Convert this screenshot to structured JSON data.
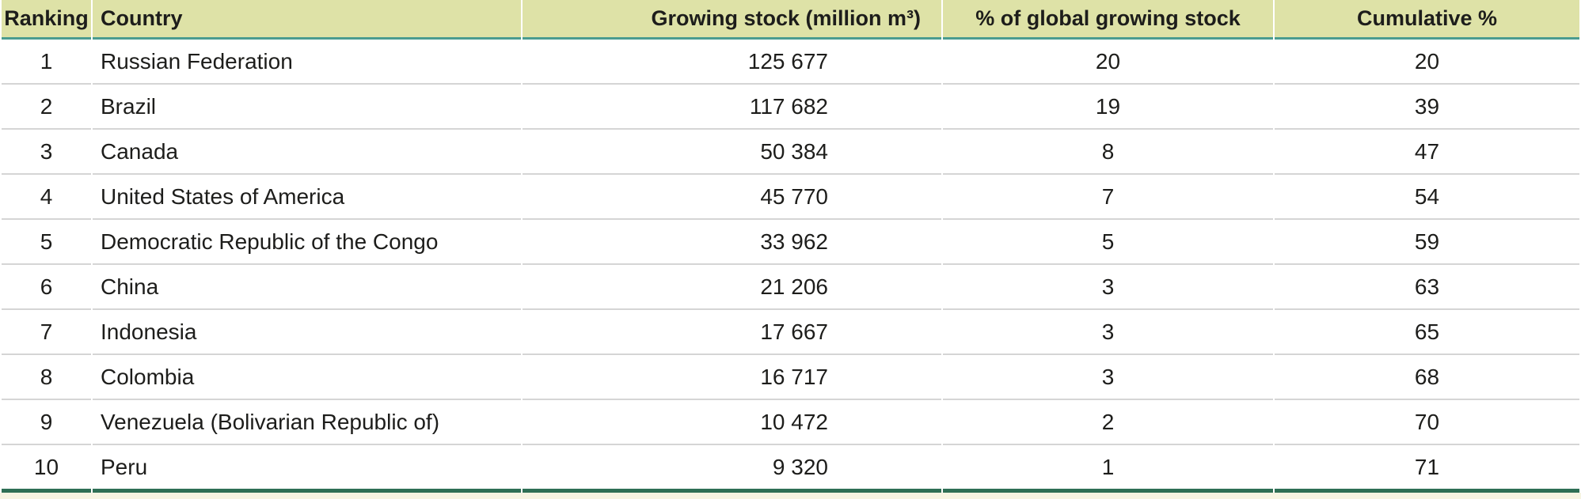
{
  "chart_data": {
    "type": "table",
    "columns": [
      "Ranking",
      "Country",
      "Growing stock (million m³)",
      "% of global growing stock",
      "Cumulative %"
    ],
    "rows": [
      [
        "1",
        "Russian Federation",
        "125 677",
        "20",
        "20"
      ],
      [
        "2",
        "Brazil",
        "117 682",
        "19",
        "39"
      ],
      [
        "3",
        "Canada",
        "50 384",
        "8",
        "47"
      ],
      [
        "4",
        "United States of America",
        "45 770",
        "7",
        "54"
      ],
      [
        "5",
        "Democratic Republic of the Congo",
        "33 962",
        "5",
        "59"
      ],
      [
        "6",
        "China",
        "21 206",
        "3",
        "63"
      ],
      [
        "7",
        "Indonesia",
        "17 667",
        "3",
        "65"
      ],
      [
        "8",
        "Colombia",
        "16 717",
        "3",
        "68"
      ],
      [
        "9",
        "Venezuela (Bolivarian Republic of)",
        "10 472",
        "2",
        "70"
      ],
      [
        "10",
        "Peru",
        "9 320",
        "1",
        "71"
      ]
    ]
  },
  "colors": {
    "header_bg": "#dee2a7",
    "header_rule": "#4a9c90",
    "bottom_rule": "#2e6f55",
    "row_divider": "#d5d5d5",
    "footer_strip": "#f6f4e2",
    "text": "#1d1d1b"
  }
}
